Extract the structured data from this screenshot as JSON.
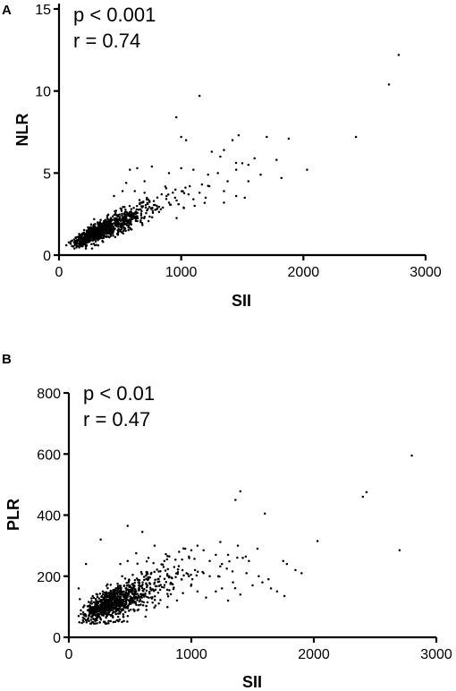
{
  "chart_data": [
    {
      "type": "scatter",
      "panel_label": "A",
      "xlabel": "SII",
      "ylabel": "NLR",
      "xlim": [
        0,
        3000
      ],
      "ylim": [
        0,
        15
      ],
      "xticks": [
        0,
        1000,
        2000,
        3000
      ],
      "yticks": [
        0,
        5,
        10,
        15
      ],
      "annotations": [
        "p < 0.001",
        "r = 0.74"
      ],
      "grid": false,
      "dense_cluster": {
        "x_center": 350,
        "y_center": 1.6,
        "n": 900,
        "note": "dense cloud of points between SII 100–800 and NLR 0.5–3"
      },
      "points": [
        [
          2780,
          12.2
        ],
        [
          2700,
          10.4
        ],
        [
          1150,
          9.7
        ],
        [
          960,
          8.4
        ],
        [
          1000,
          7.2
        ],
        [
          1040,
          7.0
        ],
        [
          1470,
          7.3
        ],
        [
          1700,
          7.2
        ],
        [
          1880,
          7.1
        ],
        [
          2430,
          7.2
        ],
        [
          1420,
          7.0
        ],
        [
          1250,
          6.3
        ],
        [
          1350,
          6.4
        ],
        [
          1320,
          6.0
        ],
        [
          1600,
          5.9
        ],
        [
          1550,
          5.5
        ],
        [
          1780,
          5.8
        ],
        [
          1500,
          5.6
        ],
        [
          2030,
          5.2
        ],
        [
          1450,
          5.2
        ],
        [
          1300,
          5.0
        ],
        [
          1100,
          5.2
        ],
        [
          1000,
          5.3
        ],
        [
          900,
          5.0
        ],
        [
          1220,
          4.9
        ],
        [
          1380,
          4.5
        ],
        [
          1550,
          4.5
        ],
        [
          1170,
          4.3
        ],
        [
          1070,
          4.2
        ],
        [
          1230,
          4.2
        ],
        [
          1350,
          3.9
        ],
        [
          1520,
          3.5
        ],
        [
          1450,
          3.6
        ],
        [
          1350,
          3.2
        ],
        [
          1150,
          3.8
        ],
        [
          1060,
          3.7
        ],
        [
          1100,
          3.4
        ],
        [
          950,
          3.5
        ],
        [
          880,
          3.6
        ],
        [
          840,
          3.7
        ],
        [
          760,
          5.4
        ],
        [
          640,
          5.3
        ],
        [
          580,
          5.2
        ],
        [
          700,
          3.8
        ],
        [
          620,
          3.9
        ],
        [
          520,
          3.9
        ],
        [
          800,
          3.0
        ],
        [
          850,
          2.9
        ],
        [
          900,
          3.2
        ],
        [
          980,
          3.1
        ],
        [
          1020,
          2.9
        ],
        [
          740,
          3.3
        ],
        [
          450,
          3.6
        ],
        [
          1110,
          3.0
        ],
        [
          700,
          4.5
        ],
        [
          550,
          4.4
        ],
        [
          1200,
          3.5
        ],
        [
          1650,
          4.9
        ],
        [
          1820,
          4.7
        ],
        [
          60,
          0.6
        ]
      ]
    },
    {
      "type": "scatter",
      "panel_label": "B",
      "xlabel": "SII",
      "ylabel": "PLR",
      "xlim": [
        0,
        3000
      ],
      "ylim": [
        0,
        800
      ],
      "xticks": [
        0,
        1000,
        2000,
        3000
      ],
      "yticks": [
        0,
        200,
        400,
        600,
        800
      ],
      "annotations": [
        "p < 0.01",
        "r = 0.47"
      ],
      "grid": false,
      "dense_cluster": {
        "x_center": 380,
        "y_center": 115,
        "n": 900,
        "note": "dense cloud of points between SII 100–800 and PLR 60–200"
      },
      "points": [
        [
          2800,
          595
        ],
        [
          2430,
          475
        ],
        [
          2400,
          460
        ],
        [
          1400,
          478
        ],
        [
          1360,
          450
        ],
        [
          1600,
          405
        ],
        [
          2700,
          285
        ],
        [
          2030,
          315
        ],
        [
          1850,
          220
        ],
        [
          1750,
          250
        ],
        [
          1780,
          240
        ],
        [
          1540,
          290
        ],
        [
          1470,
          250
        ],
        [
          1420,
          260
        ],
        [
          1380,
          300
        ],
        [
          1300,
          270
        ],
        [
          1250,
          240
        ],
        [
          1200,
          270
        ],
        [
          1150,
          250
        ],
        [
          1100,
          285
        ],
        [
          1050,
          300
        ],
        [
          1000,
          285
        ],
        [
          950,
          290
        ],
        [
          900,
          280
        ],
        [
          1630,
          190
        ],
        [
          1580,
          180
        ],
        [
          1500,
          170
        ],
        [
          1450,
          210
        ],
        [
          1650,
          160
        ],
        [
          1700,
          150
        ],
        [
          1760,
          135
        ],
        [
          1340,
          180
        ],
        [
          1250,
          160
        ],
        [
          1200,
          150
        ],
        [
          1150,
          200
        ],
        [
          1100,
          210
        ],
        [
          1030,
          220
        ],
        [
          980,
          200
        ],
        [
          920,
          190
        ],
        [
          860,
          230
        ],
        [
          1550,
          200
        ],
        [
          1220,
          200
        ],
        [
          480,
          365
        ],
        [
          260,
          320
        ],
        [
          600,
          345
        ],
        [
          700,
          300
        ],
        [
          550,
          275
        ],
        [
          650,
          260
        ],
        [
          480,
          250
        ],
        [
          420,
          240
        ],
        [
          140,
          240
        ],
        [
          80,
          160
        ],
        [
          90,
          125
        ],
        [
          1050,
          150
        ],
        [
          1120,
          130
        ],
        [
          1400,
          140
        ],
        [
          1900,
          210
        ],
        [
          1300,
          120
        ],
        [
          780,
          250
        ],
        [
          820,
          265
        ]
      ]
    }
  ]
}
